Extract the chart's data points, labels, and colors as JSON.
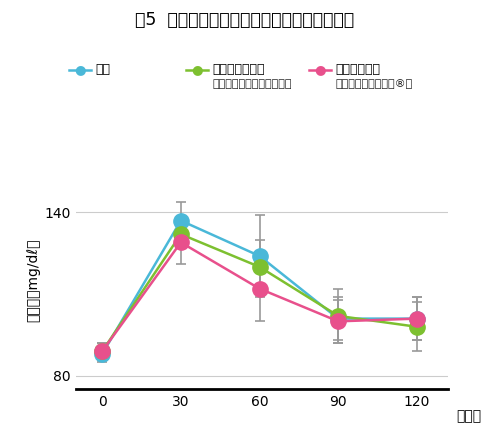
{
  "title": "図5  メカブの摂取による血糖値上昇抑制効果",
  "xlabel_unit": "（分）",
  "ylabel": "血糖値（mg/dℓ）",
  "x": [
    0,
    30,
    60,
    90,
    120
  ],
  "series": [
    {
      "label_line1": "白飯",
      "label_line2": "",
      "color": "#4ab8d8",
      "values": [
        88,
        137,
        124,
        101,
        101
      ],
      "yerr": [
        3,
        7,
        15,
        8,
        8
      ]
    },
    {
      "label_line1": "白飯＋キャベツ",
      "label_line2": "（ベジタブルファースト）",
      "color": "#7dc030",
      "values": [
        89,
        132,
        120,
        102,
        98
      ],
      "yerr": [
        3,
        5,
        10,
        10,
        9
      ]
    },
    {
      "label_line1": "白飯＋メカブ",
      "label_line2": "（めかぶファースト®）",
      "color": "#e8508c",
      "values": [
        89,
        129,
        112,
        100,
        101
      ],
      "yerr": [
        3,
        8,
        12,
        8,
        8
      ]
    }
  ],
  "ylim": [
    75,
    155
  ],
  "yticks": [
    80,
    140
  ],
  "background_color": "#ffffff",
  "title_fontsize": 12.5,
  "axis_fontsize": 10,
  "legend_fontsize": 9,
  "legend_sub_fontsize": 8,
  "marker_size": 11,
  "linewidth": 1.8,
  "error_color": "#999999"
}
